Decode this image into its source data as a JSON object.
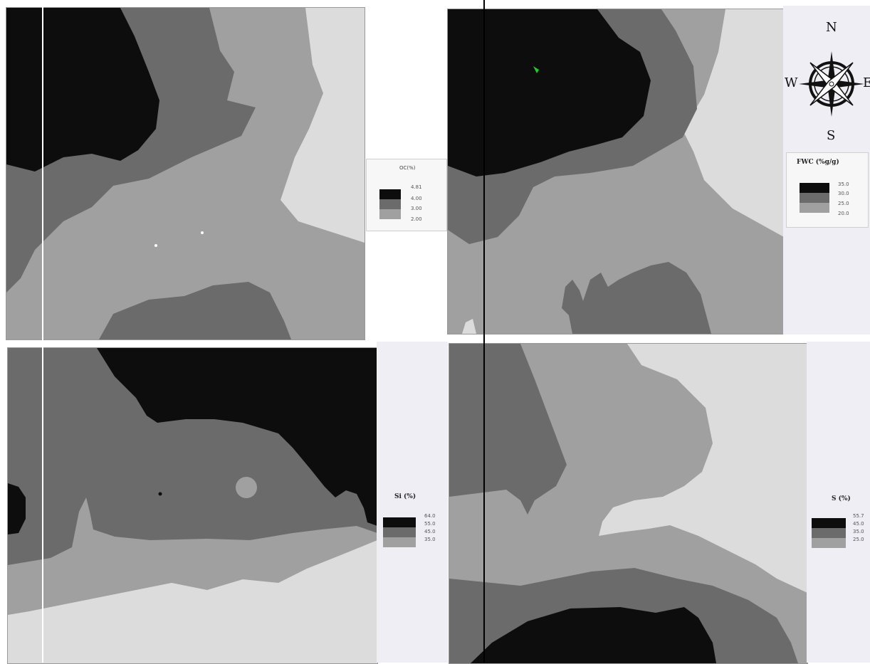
{
  "colors": {
    "class1": "#0d0d0d",
    "class2": "#6b6b6b",
    "class3": "#a0a0a0",
    "class4": "#dcdcdc",
    "sidebar": "#eeeef4",
    "marker_green": "#22cc22"
  },
  "panels": [
    {
      "legend_title": "OC(%)",
      "values": [
        "4.81",
        "4.00",
        "3.00",
        "2.00"
      ]
    },
    {
      "legend_title": "FWC (%g/g)",
      "values": [
        "35.0",
        "30.0",
        "25.0",
        "20.0"
      ]
    },
    {
      "legend_title": "Si (%)",
      "values": [
        "64.0",
        "55.0",
        "45.0",
        "35.0"
      ]
    },
    {
      "legend_title": "S (%)",
      "values": [
        "55.7",
        "45.0",
        "35.0",
        "25.0"
      ]
    }
  ],
  "compass": {
    "n": "N",
    "s": "S",
    "w": "W",
    "e": "E",
    "icon": "compass-rose-icon"
  }
}
